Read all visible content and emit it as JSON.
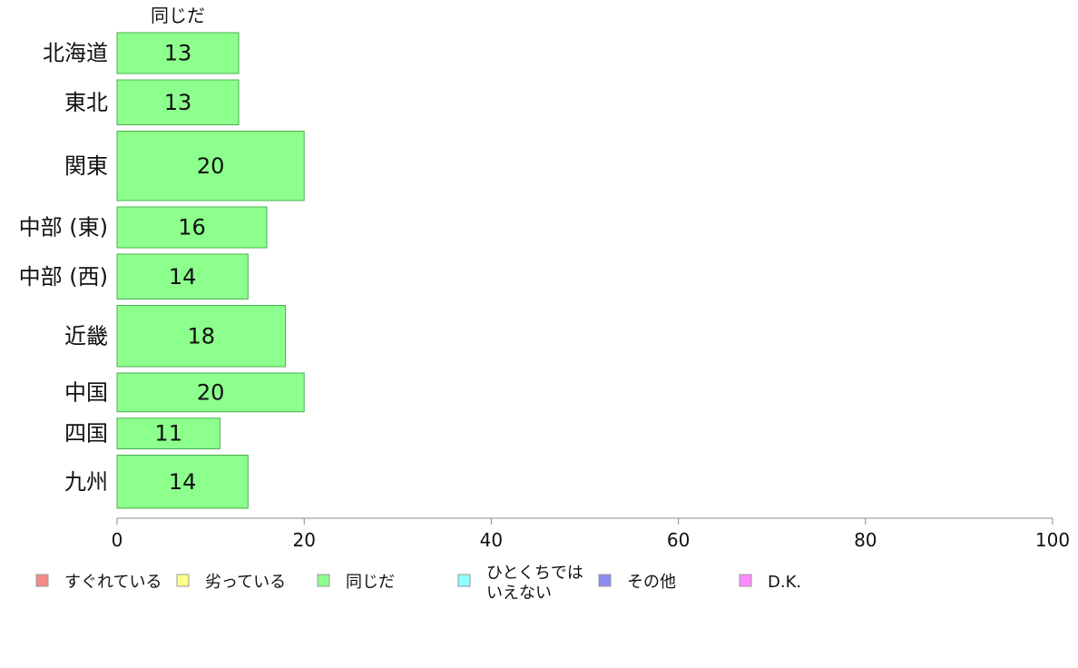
{
  "chart_data": {
    "type": "bar",
    "orientation": "horizontal",
    "categories": [
      "北海道",
      "東北",
      "関東",
      "中部 (東)",
      "中部 (西)",
      "近畿",
      "中国",
      "四国",
      "九州"
    ],
    "series": [
      {
        "name": "同じだ",
        "values": [
          13,
          13,
          20,
          16,
          14,
          18,
          20,
          11,
          14
        ],
        "color": "#8cff8c"
      }
    ],
    "bar_weights": [
      1.0,
      1.1,
      1.7,
      1.0,
      1.1,
      1.5,
      0.95,
      0.75,
      1.3
    ],
    "xlim": [
      0,
      100
    ],
    "xticks": [
      0,
      20,
      40,
      60,
      80,
      100
    ],
    "grid": false,
    "legend_position": "bottom",
    "legend": [
      {
        "label": [
          "すぐれている"
        ],
        "color": "#f28a8a"
      },
      {
        "label": [
          "劣っている"
        ],
        "color": "#ffff8c"
      },
      {
        "label": [
          "同じだ"
        ],
        "color": "#8cff8c"
      },
      {
        "label": [
          "ひとくちでは",
          "いえない"
        ],
        "color": "#8cffff"
      },
      {
        "label": [
          "その他"
        ],
        "color": "#8c8cf2"
      },
      {
        "label": [
          "D.K."
        ],
        "color": "#ff8cff"
      }
    ]
  }
}
